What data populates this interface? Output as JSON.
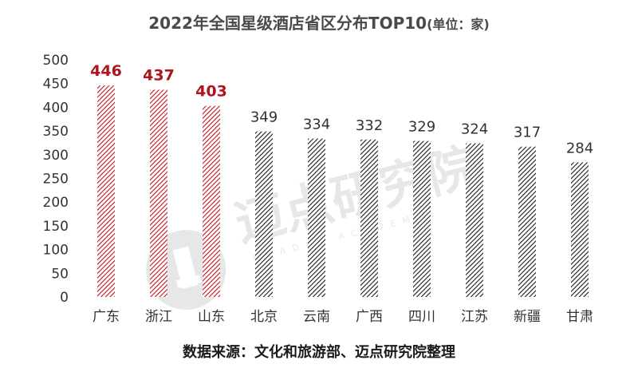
{
  "chart_data": {
    "type": "bar",
    "title": "2022年全国星级酒店省区分布TOP10",
    "title_unit": "(单位：家)",
    "categories": [
      "广东",
      "浙江",
      "山东",
      "北京",
      "云南",
      "广西",
      "四川",
      "江苏",
      "新疆",
      "甘肃"
    ],
    "values": [
      446,
      437,
      403,
      349,
      334,
      332,
      329,
      324,
      317,
      284
    ],
    "value_labels": [
      "446",
      "437",
      "403",
      "349",
      "334",
      "332",
      "329",
      "324",
      "317",
      "284"
    ],
    "highlight_count": 3,
    "ylim": [
      0,
      500
    ],
    "yticks": [
      "0",
      "50",
      "100",
      "150",
      "200",
      "250",
      "300",
      "350",
      "400",
      "450",
      "500"
    ],
    "grid": false,
    "colors": {
      "highlight": "#c0141c",
      "normal": "#1a1a1a",
      "highlight_label": "#b0141c"
    }
  },
  "watermark": {
    "text": "迈点研究院",
    "subtext": "MEADIN ACADEMY"
  },
  "source_note": "数据来源：文化和旅游部、迈点研究院整理"
}
